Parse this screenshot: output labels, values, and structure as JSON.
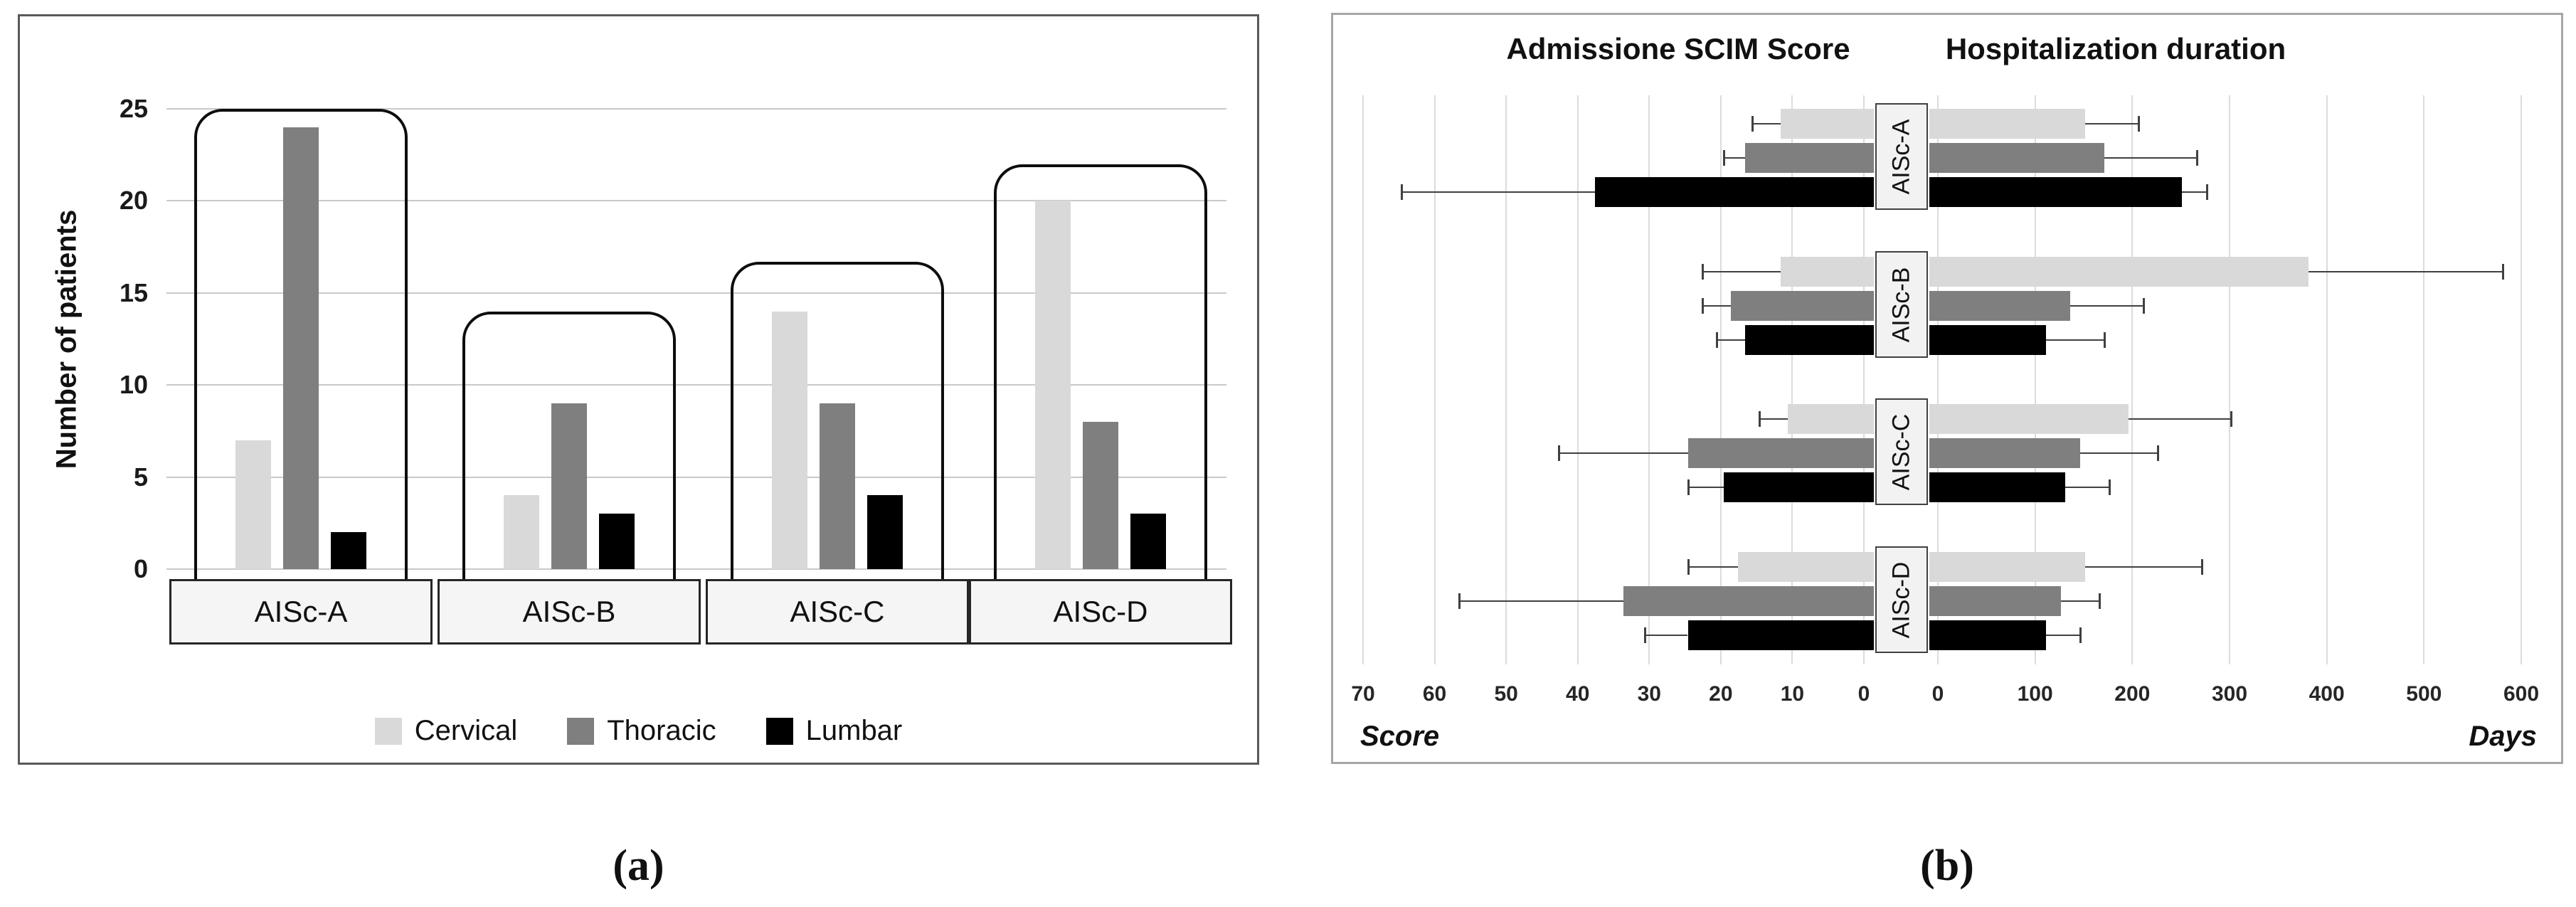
{
  "figure": {
    "panel_a_label": "(a)",
    "panel_b_label": "(b)"
  },
  "chart_data": [
    {
      "id": "panel-a",
      "type": "bar",
      "ylabel": "Number of patients",
      "ylim": [
        0,
        25
      ],
      "yticks": [
        0,
        5,
        10,
        15,
        20,
        25
      ],
      "categories": [
        "AISc-A",
        "AISc-B",
        "AISc-C",
        "AISc-D"
      ],
      "series": [
        {
          "name": "Cervical",
          "color": "#d9d9d9",
          "values": [
            7,
            4,
            14,
            20
          ]
        },
        {
          "name": "Thoracic",
          "color": "#7f7f7f",
          "values": [
            24,
            9,
            9,
            8
          ]
        },
        {
          "name": "Lumbar",
          "color": "#000000",
          "values": [
            2,
            3,
            4,
            3
          ]
        }
      ],
      "group_outline_tops": [
        25,
        14,
        16.7,
        22
      ],
      "grid": true,
      "legend_position": "bottom"
    },
    {
      "id": "panel-b",
      "type": "tornado-bar",
      "left_title": "Admissione SCIM Score",
      "right_title": "Hospitalization duration",
      "left_axis_label": "Score",
      "right_axis_label": "Days",
      "left_ticks": [
        70,
        60,
        50,
        40,
        30,
        20,
        10,
        0
      ],
      "right_ticks": [
        0,
        100,
        200,
        300,
        400,
        500,
        600
      ],
      "left_range": [
        0,
        70
      ],
      "right_range": [
        0,
        600
      ],
      "categories": [
        "AISc-A",
        "AISc-B",
        "AISc-C",
        "AISc-D"
      ],
      "series_names": [
        "Cervical",
        "Thoracic",
        "Lumbar"
      ],
      "series_colors": [
        "#d9d9d9",
        "#7f7f7f",
        "#000000"
      ],
      "left_values": [
        [
          13,
          18,
          39
        ],
        [
          13,
          20,
          18
        ],
        [
          12,
          26,
          21
        ],
        [
          19,
          35,
          26
        ]
      ],
      "left_errors": [
        [
          4,
          3,
          27
        ],
        [
          11,
          4,
          4
        ],
        [
          4,
          18,
          5
        ],
        [
          7,
          23,
          6
        ]
      ],
      "right_values": [
        [
          160,
          180,
          260
        ],
        [
          390,
          145,
          120
        ],
        [
          205,
          155,
          140
        ],
        [
          160,
          135,
          120
        ]
      ],
      "right_errors": [
        [
          55,
          95,
          25
        ],
        [
          200,
          75,
          60
        ],
        [
          105,
          80,
          45
        ],
        [
          120,
          40,
          35
        ]
      ],
      "grid": true
    }
  ]
}
